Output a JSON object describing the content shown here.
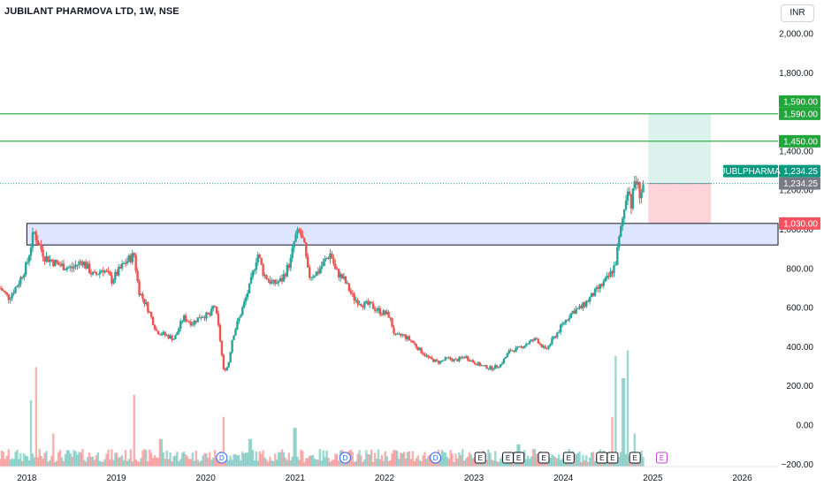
{
  "header": {
    "title": "JUBILANT PHARMOVA LTD, 1W, NSE",
    "currency": "INR"
  },
  "colors": {
    "up": "#26a69a",
    "down": "#ef5350",
    "level": "#22a63c",
    "zone": "#dfe6ff",
    "target_zone": "#dcf2ec",
    "stop_zone": "#fdd5d8",
    "dividend": "#2962ff",
    "earnings": "#131722",
    "earnings_future": "#c045d3"
  },
  "chart_data": {
    "type": "candlestick",
    "y_ticks": [
      "2,000.00",
      "1,800.00",
      "1,400.00",
      "1,200.00",
      "1,000.00",
      "800.00",
      "600.00",
      "400.00",
      "200.00",
      "0.00",
      "−200.00"
    ],
    "y_tick_values": [
      2000,
      1800,
      1400,
      1200,
      1000,
      800,
      600,
      400,
      200,
      0,
      -200
    ],
    "ylim": [
      -200,
      2000
    ],
    "x_ticks": [
      "2018",
      "2019",
      "2020",
      "2021",
      "2022",
      "2023",
      "2024",
      "2025",
      "2026"
    ],
    "x_tick_years": [
      2018,
      2019,
      2020,
      2021,
      2022,
      2023,
      2024,
      2025,
      2026
    ],
    "xlim": [
      2017.7,
      2026.4
    ],
    "price_path": [
      [
        2017.7,
        700
      ],
      [
        2017.8,
        650
      ],
      [
        2017.9,
        720
      ],
      [
        2018.0,
        820
      ],
      [
        2018.08,
        990
      ],
      [
        2018.12,
        940
      ],
      [
        2018.2,
        860
      ],
      [
        2018.35,
        820
      ],
      [
        2018.5,
        800
      ],
      [
        2018.62,
        840
      ],
      [
        2018.75,
        760
      ],
      [
        2018.85,
        800
      ],
      [
        2018.95,
        740
      ],
      [
        2019.1,
        830
      ],
      [
        2019.2,
        870
      ],
      [
        2019.25,
        690
      ],
      [
        2019.35,
        600
      ],
      [
        2019.45,
        480
      ],
      [
        2019.55,
        460
      ],
      [
        2019.65,
        440
      ],
      [
        2019.75,
        550
      ],
      [
        2019.85,
        520
      ],
      [
        2019.95,
        560
      ],
      [
        2020.05,
        560
      ],
      [
        2020.1,
        620
      ],
      [
        2020.15,
        480
      ],
      [
        2020.2,
        280
      ],
      [
        2020.25,
        300
      ],
      [
        2020.3,
        450
      ],
      [
        2020.4,
        580
      ],
      [
        2020.5,
        720
      ],
      [
        2020.58,
        880
      ],
      [
        2020.65,
        770
      ],
      [
        2020.75,
        720
      ],
      [
        2020.85,
        740
      ],
      [
        2020.95,
        840
      ],
      [
        2021.0,
        960
      ],
      [
        2021.05,
        990
      ],
      [
        2021.1,
        920
      ],
      [
        2021.15,
        760
      ],
      [
        2021.25,
        780
      ],
      [
        2021.35,
        850
      ],
      [
        2021.4,
        880
      ],
      [
        2021.45,
        790
      ],
      [
        2021.55,
        740
      ],
      [
        2021.65,
        650
      ],
      [
        2021.75,
        620
      ],
      [
        2021.85,
        610
      ],
      [
        2021.95,
        580
      ],
      [
        2022.05,
        560
      ],
      [
        2022.12,
        450
      ],
      [
        2022.2,
        460
      ],
      [
        2022.3,
        430
      ],
      [
        2022.4,
        380
      ],
      [
        2022.5,
        340
      ],
      [
        2022.6,
        320
      ],
      [
        2022.7,
        340
      ],
      [
        2022.8,
        330
      ],
      [
        2022.9,
        350
      ],
      [
        2023.0,
        320
      ],
      [
        2023.1,
        300
      ],
      [
        2023.2,
        290
      ],
      [
        2023.3,
        310
      ],
      [
        2023.4,
        380
      ],
      [
        2023.5,
        390
      ],
      [
        2023.6,
        420
      ],
      [
        2023.7,
        440
      ],
      [
        2023.8,
        380
      ],
      [
        2023.9,
        450
      ],
      [
        2024.0,
        520
      ],
      [
        2024.1,
        580
      ],
      [
        2024.2,
        600
      ],
      [
        2024.3,
        650
      ],
      [
        2024.4,
        700
      ],
      [
        2024.5,
        750
      ],
      [
        2024.58,
        820
      ],
      [
        2024.62,
        940
      ],
      [
        2024.68,
        1100
      ],
      [
        2024.72,
        1230
      ],
      [
        2024.76,
        1120
      ],
      [
        2024.8,
        1260
      ],
      [
        2024.86,
        1180
      ],
      [
        2024.9,
        1234
      ]
    ],
    "volume_spikes": [
      [
        2018.05,
        0.6
      ],
      [
        2018.1,
        0.9
      ],
      [
        2018.3,
        0.3
      ],
      [
        2019.2,
        0.65
      ],
      [
        2019.5,
        0.25
      ],
      [
        2020.2,
        0.45
      ],
      [
        2020.5,
        0.25
      ],
      [
        2021.0,
        0.35
      ],
      [
        2022.1,
        0.15
      ],
      [
        2023.5,
        0.2
      ],
      [
        2024.55,
        0.45
      ],
      [
        2024.58,
        1.0
      ],
      [
        2024.67,
        0.8
      ],
      [
        2024.72,
        1.05
      ],
      [
        2024.8,
        0.3
      ]
    ],
    "levels": [
      {
        "name": "target",
        "value": 1590,
        "labels": [
          "1,590.00",
          "1,590.00"
        ]
      },
      {
        "name": "resistance",
        "value": 1450,
        "labels": [
          "1,450.00"
        ]
      }
    ],
    "zone": {
      "from": 920,
      "to": 1030,
      "x_start": 2018.0
    },
    "position": {
      "x_start": 2024.95,
      "x_end": 2025.65,
      "entry": 1234.25,
      "target": 1590,
      "stop": 1030
    },
    "last_price": {
      "ticker": "JUBLPHARMA",
      "value": "1,234.25",
      "value2": "1,234.25"
    },
    "stop_label": "1,030.00",
    "events": [
      {
        "x": 2020.18,
        "type": "D"
      },
      {
        "x": 2021.56,
        "type": "D"
      },
      {
        "x": 2022.57,
        "type": "D"
      },
      {
        "x": 2023.07,
        "type": "E"
      },
      {
        "x": 2023.38,
        "type": "E"
      },
      {
        "x": 2023.5,
        "type": "E"
      },
      {
        "x": 2023.78,
        "type": "E"
      },
      {
        "x": 2024.06,
        "type": "E"
      },
      {
        "x": 2024.43,
        "type": "E"
      },
      {
        "x": 2024.55,
        "type": "E"
      },
      {
        "x": 2024.8,
        "type": "E"
      },
      {
        "x": 2025.1,
        "type": "E",
        "future": true
      }
    ]
  }
}
